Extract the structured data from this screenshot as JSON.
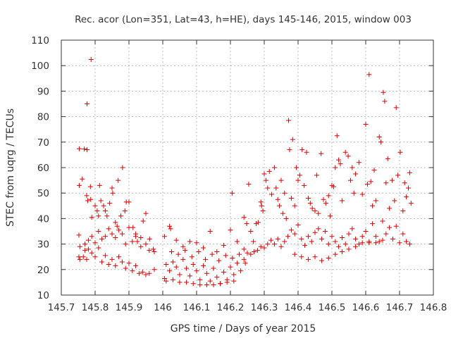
{
  "chart_data": {
    "type": "scatter",
    "title": "Rec. acor (Lon=351, Lat=43, h=HE), days 145-146, 2015, window 003",
    "xlabel": "GPS time / Days of year 2015",
    "ylabel": "STEC from uqrg / TECUs",
    "xlim": [
      145.7,
      146.8
    ],
    "ylim": [
      10,
      110
    ],
    "xticks": [
      145.7,
      145.8,
      145.9,
      146.0,
      146.1,
      146.2,
      146.3,
      146.4,
      146.5,
      146.6,
      146.7,
      146.8
    ],
    "xtick_labels": [
      "145.7",
      "145.8",
      "145.9",
      "146",
      "146.1",
      "146.2",
      "146.3",
      "146.4",
      "146.5",
      "146.6",
      "146.7",
      "146.8"
    ],
    "yticks": [
      10,
      20,
      30,
      40,
      50,
      60,
      70,
      80,
      90,
      100,
      110
    ],
    "ytick_labels": [
      "10",
      "20",
      "30",
      "40",
      "50",
      "60",
      "70",
      "80",
      "90",
      "100",
      "110"
    ],
    "grid": true,
    "marker": "+",
    "marker_color": "#dd0000",
    "series": [
      {
        "points": [
          [
            145.753,
            67.4
          ],
          [
            145.768,
            67.3
          ],
          [
            145.776,
            67.0
          ],
          [
            145.776,
            85.0
          ],
          [
            145.788,
            102.4
          ],
          [
            145.753,
            53.0
          ],
          [
            145.762,
            55.5
          ],
          [
            145.775,
            49.0
          ],
          [
            145.778,
            47.0
          ],
          [
            145.786,
            52.5
          ],
          [
            145.787,
            47.5
          ],
          [
            145.79,
            40.5
          ],
          [
            145.8,
            45.0
          ],
          [
            145.806,
            43.0
          ],
          [
            145.81,
            41.0
          ],
          [
            145.813,
            53.0
          ],
          [
            145.817,
            47.0
          ],
          [
            145.825,
            45.0
          ],
          [
            145.83,
            43.0
          ],
          [
            145.835,
            41.0
          ],
          [
            145.843,
            46.0
          ],
          [
            145.85,
            52.0
          ],
          [
            145.852,
            50.0
          ],
          [
            145.86,
            38.5
          ],
          [
            145.865,
            37.0
          ],
          [
            145.868,
            55.0
          ],
          [
            145.876,
            41.0
          ],
          [
            145.881,
            60.0
          ],
          [
            145.888,
            43.0
          ],
          [
            145.892,
            46.5
          ],
          [
            145.9,
            46.5
          ],
          [
            145.912,
            36.5
          ],
          [
            145.92,
            33.0
          ],
          [
            145.925,
            31.0
          ],
          [
            145.935,
            29.0
          ],
          [
            145.942,
            39.0
          ],
          [
            145.95,
            42.0
          ],
          [
            145.961,
            32.0
          ],
          [
            145.972,
            28.0
          ],
          [
            145.752,
            33.5
          ],
          [
            145.755,
            29.0
          ],
          [
            145.77,
            30.0
          ],
          [
            145.78,
            31.5
          ],
          [
            145.79,
            33.0
          ],
          [
            145.8,
            30.5
          ],
          [
            145.81,
            35.0
          ],
          [
            145.82,
            32.0
          ],
          [
            145.83,
            33.0
          ],
          [
            145.84,
            36.0
          ],
          [
            145.85,
            34.0
          ],
          [
            145.86,
            32.5
          ],
          [
            145.87,
            35.5
          ],
          [
            145.88,
            34.0
          ],
          [
            145.89,
            30.0
          ],
          [
            145.9,
            36.5
          ],
          [
            145.91,
            31.0
          ],
          [
            145.92,
            34.0
          ],
          [
            145.935,
            32.5
          ],
          [
            145.95,
            30.0
          ],
          [
            145.96,
            27.5
          ],
          [
            145.975,
            27.0
          ],
          [
            145.752,
            25.0
          ],
          [
            145.755,
            24.0
          ],
          [
            145.765,
            25.0
          ],
          [
            145.77,
            27.5
          ],
          [
            145.775,
            24.0
          ],
          [
            145.78,
            28.0
          ],
          [
            145.79,
            26.5
          ],
          [
            145.8,
            25.0
          ],
          [
            145.81,
            28.5
          ],
          [
            145.82,
            23.0
          ],
          [
            145.83,
            25.5
          ],
          [
            145.84,
            22.0
          ],
          [
            145.85,
            24.0
          ],
          [
            145.86,
            21.5
          ],
          [
            145.87,
            25.0
          ],
          [
            145.88,
            23.0
          ],
          [
            145.89,
            20.5
          ],
          [
            145.9,
            22.5
          ],
          [
            145.91,
            19.5
          ],
          [
            145.92,
            21.5
          ],
          [
            145.93,
            18.5
          ],
          [
            145.94,
            19.0
          ],
          [
            145.95,
            18.0
          ],
          [
            145.96,
            18.5
          ],
          [
            145.975,
            20.0
          ],
          [
            146.005,
            16.5
          ],
          [
            146.01,
            22.0
          ],
          [
            146.02,
            19.5
          ],
          [
            146.03,
            23.0
          ],
          [
            146.04,
            21.0
          ],
          [
            146.05,
            18.0
          ],
          [
            146.06,
            24.0
          ],
          [
            146.07,
            20.5
          ],
          [
            146.08,
            17.5
          ],
          [
            146.09,
            22.0
          ],
          [
            146.1,
            19.5
          ],
          [
            146.11,
            16.0
          ],
          [
            146.12,
            21.5
          ],
          [
            146.13,
            18.5
          ],
          [
            146.14,
            15.5
          ],
          [
            146.15,
            20.5
          ],
          [
            146.16,
            17.0
          ],
          [
            146.17,
            14.5
          ],
          [
            146.18,
            19.0
          ],
          [
            146.19,
            16.0
          ],
          [
            146.2,
            21.0
          ],
          [
            146.21,
            18.0
          ],
          [
            146.22,
            22.5
          ],
          [
            146.23,
            19.5
          ],
          [
            146.24,
            24.0
          ],
          [
            146.01,
            15.5
          ],
          [
            146.03,
            16.0
          ],
          [
            146.05,
            15.0
          ],
          [
            146.07,
            15.0
          ],
          [
            146.09,
            14.5
          ],
          [
            146.11,
            14.0
          ],
          [
            146.13,
            14.0
          ],
          [
            146.15,
            14.0
          ],
          [
            146.17,
            14.5
          ],
          [
            146.19,
            15.0
          ],
          [
            146.21,
            15.5
          ],
          [
            146.02,
            37.0
          ],
          [
            146.023,
            36.0
          ],
          [
            146.005,
            33.0
          ],
          [
            146.04,
            31.5
          ],
          [
            146.06,
            29.0
          ],
          [
            146.08,
            31.0
          ],
          [
            146.1,
            30.5
          ],
          [
            146.12,
            28.5
          ],
          [
            146.14,
            35.0
          ],
          [
            146.16,
            27.0
          ],
          [
            146.18,
            29.5
          ],
          [
            146.2,
            35.5
          ],
          [
            146.22,
            31.0
          ],
          [
            146.24,
            28.0
          ],
          [
            146.026,
            27.0
          ],
          [
            146.046,
            26.0
          ],
          [
            146.066,
            27.5
          ],
          [
            146.086,
            25.0
          ],
          [
            146.106,
            27.0
          ],
          [
            146.126,
            24.0
          ],
          [
            146.146,
            26.0
          ],
          [
            146.166,
            23.5
          ],
          [
            146.186,
            25.5
          ],
          [
            146.206,
            24.5
          ],
          [
            146.226,
            26.0
          ],
          [
            146.244,
            22.5
          ],
          [
            146.205,
            50.0
          ],
          [
            146.24,
            40.5
          ],
          [
            146.248,
            38.0
          ],
          [
            146.254,
            53.5
          ],
          [
            146.26,
            35.0
          ],
          [
            146.268,
            31.0
          ],
          [
            146.276,
            38.0
          ],
          [
            146.282,
            38.5
          ],
          [
            146.29,
            46.5
          ],
          [
            146.292,
            45.0
          ],
          [
            146.296,
            43.0
          ],
          [
            146.3,
            57.5
          ],
          [
            146.305,
            55.0
          ],
          [
            146.31,
            52.0
          ],
          [
            146.315,
            58.5
          ],
          [
            146.322,
            49.5
          ],
          [
            146.33,
            60.0
          ],
          [
            146.335,
            52.0
          ],
          [
            146.34,
            47.5
          ],
          [
            146.345,
            45.0
          ],
          [
            146.35,
            55.0
          ],
          [
            146.355,
            42.0
          ],
          [
            146.36,
            50.0
          ],
          [
            146.365,
            40.0
          ],
          [
            146.372,
            78.5
          ],
          [
            146.375,
            67.0
          ],
          [
            146.38,
            48.0
          ],
          [
            146.384,
            71.0
          ],
          [
            146.39,
            45.0
          ],
          [
            146.395,
            60.0
          ],
          [
            146.4,
            55.0
          ],
          [
            146.405,
            57.0
          ],
          [
            146.412,
            67.0
          ],
          [
            146.418,
            53.0
          ],
          [
            146.425,
            66.0
          ],
          [
            146.43,
            48.0
          ],
          [
            146.436,
            46.0
          ],
          [
            146.442,
            44.0
          ],
          [
            146.45,
            43.0
          ],
          [
            146.455,
            57.0
          ],
          [
            146.46,
            42.0
          ],
          [
            146.468,
            65.5
          ],
          [
            146.475,
            47.5
          ],
          [
            146.482,
            46.0
          ],
          [
            146.49,
            49.0
          ],
          [
            146.495,
            41.0
          ],
          [
            146.5,
            53.0
          ],
          [
            146.505,
            52.5
          ],
          [
            146.51,
            60.0
          ],
          [
            146.515,
            72.5
          ],
          [
            146.52,
            63.0
          ],
          [
            146.525,
            61.5
          ],
          [
            146.53,
            47.0
          ],
          [
            146.54,
            66.0
          ],
          [
            146.548,
            64.5
          ],
          [
            146.555,
            55.0
          ],
          [
            146.56,
            60.0
          ],
          [
            146.565,
            50.0
          ],
          [
            146.57,
            57.5
          ],
          [
            146.58,
            62.0
          ],
          [
            146.59,
            49.5
          ],
          [
            146.6,
            77.0
          ],
          [
            146.605,
            53.5
          ],
          [
            146.61,
            96.5
          ],
          [
            146.615,
            54.5
          ],
          [
            146.62,
            45.0
          ],
          [
            146.625,
            59.0
          ],
          [
            146.63,
            47.0
          ],
          [
            146.64,
            72.0
          ],
          [
            146.645,
            70.0
          ],
          [
            146.652,
            89.5
          ],
          [
            146.656,
            86.0
          ],
          [
            146.66,
            54.0
          ],
          [
            146.665,
            63.5
          ],
          [
            146.67,
            44.0
          ],
          [
            146.678,
            55.0
          ],
          [
            146.685,
            47.0
          ],
          [
            146.69,
            83.5
          ],
          [
            146.695,
            57.0
          ],
          [
            146.702,
            66.0
          ],
          [
            146.71,
            43.0
          ],
          [
            146.715,
            54.0
          ],
          [
            146.72,
            48.5
          ],
          [
            146.726,
            52.0
          ],
          [
            146.73,
            58.0
          ],
          [
            146.734,
            46.0
          ],
          [
            146.25,
            26.5
          ],
          [
            146.26,
            26.0
          ],
          [
            146.27,
            27.0
          ],
          [
            146.28,
            27.5
          ],
          [
            146.29,
            29.0
          ],
          [
            146.3,
            28.5
          ],
          [
            146.31,
            30.0
          ],
          [
            146.32,
            31.5
          ],
          [
            146.33,
            30.0
          ],
          [
            146.34,
            32.0
          ],
          [
            146.35,
            29.0
          ],
          [
            146.36,
            31.0
          ],
          [
            146.37,
            33.0
          ],
          [
            146.38,
            35.5
          ],
          [
            146.39,
            34.0
          ],
          [
            146.4,
            37.5
          ],
          [
            146.41,
            32.0
          ],
          [
            146.42,
            29.5
          ],
          [
            146.43,
            33.0
          ],
          [
            146.44,
            31.0
          ],
          [
            146.45,
            34.5
          ],
          [
            146.46,
            36.0
          ],
          [
            146.47,
            32.0
          ],
          [
            146.48,
            35.0
          ],
          [
            146.49,
            30.0
          ],
          [
            146.5,
            33.0
          ],
          [
            146.51,
            31.0
          ],
          [
            146.52,
            29.0
          ],
          [
            146.53,
            32.5
          ],
          [
            146.54,
            30.0
          ],
          [
            146.55,
            34.0
          ],
          [
            146.56,
            36.0
          ],
          [
            146.57,
            32.0
          ],
          [
            146.58,
            30.0
          ],
          [
            146.59,
            33.0
          ],
          [
            146.6,
            35.0
          ],
          [
            146.61,
            30.5
          ],
          [
            146.62,
            38.0
          ],
          [
            146.63,
            33.0
          ],
          [
            146.64,
            31.0
          ],
          [
            146.65,
            39.0
          ],
          [
            146.66,
            34.0
          ],
          [
            146.67,
            36.5
          ],
          [
            146.68,
            32.0
          ],
          [
            146.69,
            37.0
          ],
          [
            146.7,
            30.5
          ],
          [
            146.71,
            34.0
          ],
          [
            146.72,
            31.0
          ],
          [
            146.73,
            30.0
          ],
          [
            146.39,
            26.0
          ],
          [
            146.41,
            25.0
          ],
          [
            146.43,
            24.0
          ],
          [
            146.45,
            25.0
          ],
          [
            146.47,
            23.5
          ],
          [
            146.49,
            24.5
          ],
          [
            146.51,
            26.0
          ],
          [
            146.53,
            27.0
          ],
          [
            146.55,
            28.0
          ],
          [
            146.57,
            29.0
          ],
          [
            146.59,
            30.5
          ],
          [
            146.61,
            31.0
          ],
          [
            146.63,
            30.5
          ],
          [
            146.65,
            31.5
          ]
        ]
      }
    ]
  }
}
